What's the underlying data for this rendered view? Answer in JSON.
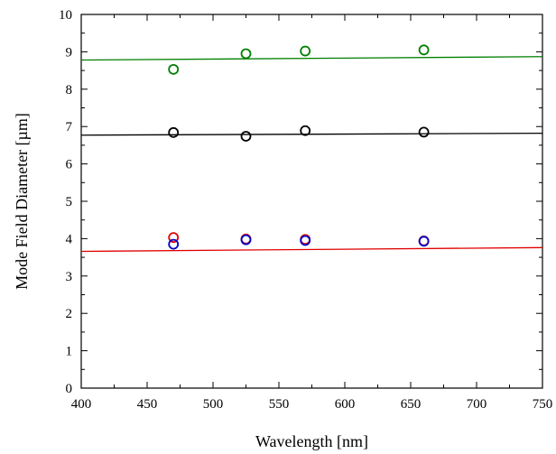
{
  "chart_data": {
    "type": "scatter",
    "title": "",
    "xlabel": "Wavelength [nm]",
    "ylabel": "Mode Field Diameter [µm]",
    "xlim": [
      400,
      750
    ],
    "ylim": [
      0,
      10
    ],
    "x_ticks": [
      400,
      450,
      500,
      550,
      600,
      650,
      700,
      750
    ],
    "y_ticks": [
      0,
      1,
      2,
      3,
      4,
      5,
      6,
      7,
      8,
      9,
      10
    ],
    "grid": false,
    "legend": "none",
    "series": [
      {
        "color": "#008000",
        "marker": "open-circle",
        "x": [
          470,
          525,
          570,
          660
        ],
        "y": [
          8.53,
          8.95,
          9.02,
          9.05
        ]
      },
      {
        "color": "#008000",
        "marker": "line",
        "x": [
          400,
          750
        ],
        "y": [
          8.78,
          8.87
        ]
      },
      {
        "color": "#000000",
        "marker": "open-circle",
        "x": [
          470,
          525,
          570,
          660
        ],
        "y": [
          6.84,
          6.74,
          6.89,
          6.85
        ]
      },
      {
        "color": "#000000",
        "marker": "line",
        "x": [
          400,
          750
        ],
        "y": [
          6.77,
          6.82
        ]
      },
      {
        "color": "#e00000",
        "marker": "open-circle",
        "x": [
          470,
          525,
          570,
          660
        ],
        "y": [
          4.03,
          3.99,
          3.98,
          3.94
        ]
      },
      {
        "color": "#0000cc",
        "marker": "open-circle",
        "x": [
          470,
          525,
          570,
          660
        ],
        "y": [
          3.85,
          3.97,
          3.95,
          3.93
        ]
      },
      {
        "color": "#e00000",
        "marker": "line",
        "x": [
          400,
          750
        ],
        "y": [
          3.66,
          3.76
        ]
      }
    ]
  }
}
